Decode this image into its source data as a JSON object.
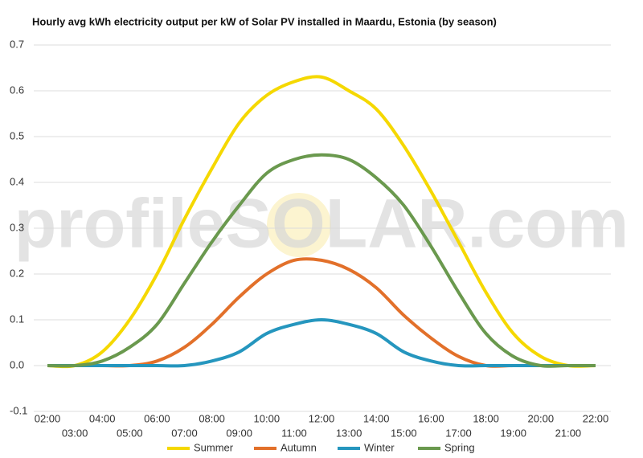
{
  "chart_data": {
    "type": "line",
    "title": "Hourly avg kWh electricity output per kW of Solar PV installed in Maardu, Estonia (by season)",
    "watermark": "profileSOLAR.com",
    "categories": [
      "02:00",
      "03:00",
      "04:00",
      "05:00",
      "06:00",
      "07:00",
      "08:00",
      "09:00",
      "10:00",
      "11:00",
      "12:00",
      "13:00",
      "14:00",
      "15:00",
      "16:00",
      "17:00",
      "18:00",
      "19:00",
      "20:00",
      "21:00",
      "22:00"
    ],
    "series": [
      {
        "name": "Summer",
        "color": "#f5d800",
        "values": [
          0,
          0,
          0.03,
          0.1,
          0.2,
          0.32,
          0.43,
          0.53,
          0.59,
          0.62,
          0.63,
          0.6,
          0.56,
          0.48,
          0.38,
          0.27,
          0.16,
          0.07,
          0.02,
          0,
          0
        ]
      },
      {
        "name": "Autumn",
        "color": "#e2702a",
        "values": [
          0,
          0,
          0,
          0,
          0.01,
          0.04,
          0.09,
          0.15,
          0.2,
          0.23,
          0.23,
          0.21,
          0.17,
          0.11,
          0.06,
          0.02,
          0,
          0,
          0,
          0,
          0
        ]
      },
      {
        "name": "Winter",
        "color": "#2596be",
        "values": [
          0,
          0,
          0,
          0,
          0,
          0,
          0.01,
          0.03,
          0.07,
          0.09,
          0.1,
          0.09,
          0.07,
          0.03,
          0.01,
          0,
          0,
          0,
          0,
          0,
          0
        ]
      },
      {
        "name": "Spring",
        "color": "#6a994e",
        "values": [
          0,
          0,
          0.01,
          0.04,
          0.09,
          0.18,
          0.27,
          0.35,
          0.42,
          0.45,
          0.46,
          0.45,
          0.41,
          0.35,
          0.26,
          0.16,
          0.07,
          0.02,
          0,
          0,
          0
        ]
      }
    ],
    "ylim": [
      -0.1,
      0.7
    ],
    "yticks": [
      -0.1,
      {
        "value": 0,
        "label": "0.0"
      },
      0.1,
      0.2,
      0.3,
      0.4,
      0.5,
      0.6,
      0.7
    ],
    "grid": true,
    "legend": "bottom"
  }
}
